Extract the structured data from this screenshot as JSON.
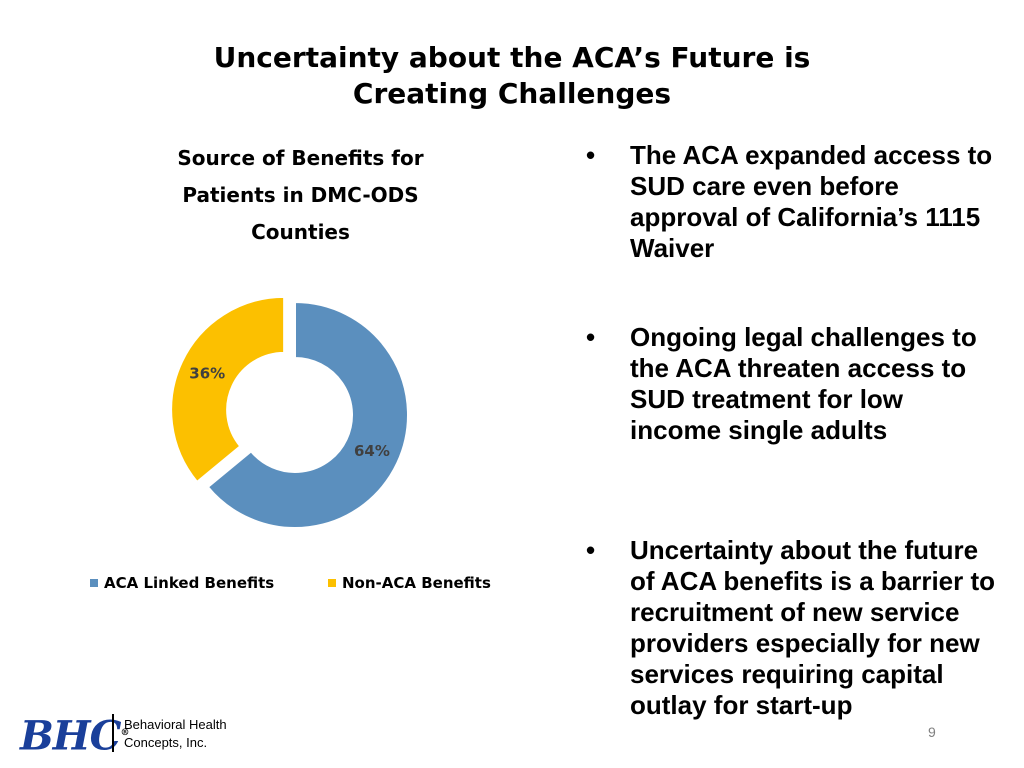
{
  "slide": {
    "title_line1": "Uncertainty about the ACA’s Future is",
    "title_line2": "Creating Challenges",
    "page_number": "9"
  },
  "bullets": [
    {
      "text": "The ACA expanded access to SUD care even before approval of California’s 1115 Waiver"
    },
    {
      "text": "Ongoing legal challenges to the ACA threaten access to SUD treatment for low income single adults"
    },
    {
      "text": "Uncertainty about the future of ACA benefits is a barrier to recruitment of new service providers especially for new services requiring capital outlay for start-up"
    }
  ],
  "bullet_symbol": "•",
  "logo": {
    "mark": "BHC",
    "registered": "®",
    "line1": "Behavioral Health",
    "line2": "Concepts, Inc."
  },
  "colors": {
    "aca": "#5b8fbe",
    "non_aca": "#fcc000",
    "logo_blue": "#1a3f9a"
  },
  "chart_data": {
    "type": "pie",
    "variant": "donut",
    "title_line1": "Source of Benefits for",
    "title_line2": "Patients in DMC-ODS",
    "title_line3": "Counties",
    "legend_position": "bottom",
    "series": [
      {
        "name": "ACA Linked Benefits",
        "value": 64,
        "label": "64%"
      },
      {
        "name": "Non-ACA Benefits",
        "value": 36,
        "label": "36%",
        "exploded": true
      }
    ]
  }
}
